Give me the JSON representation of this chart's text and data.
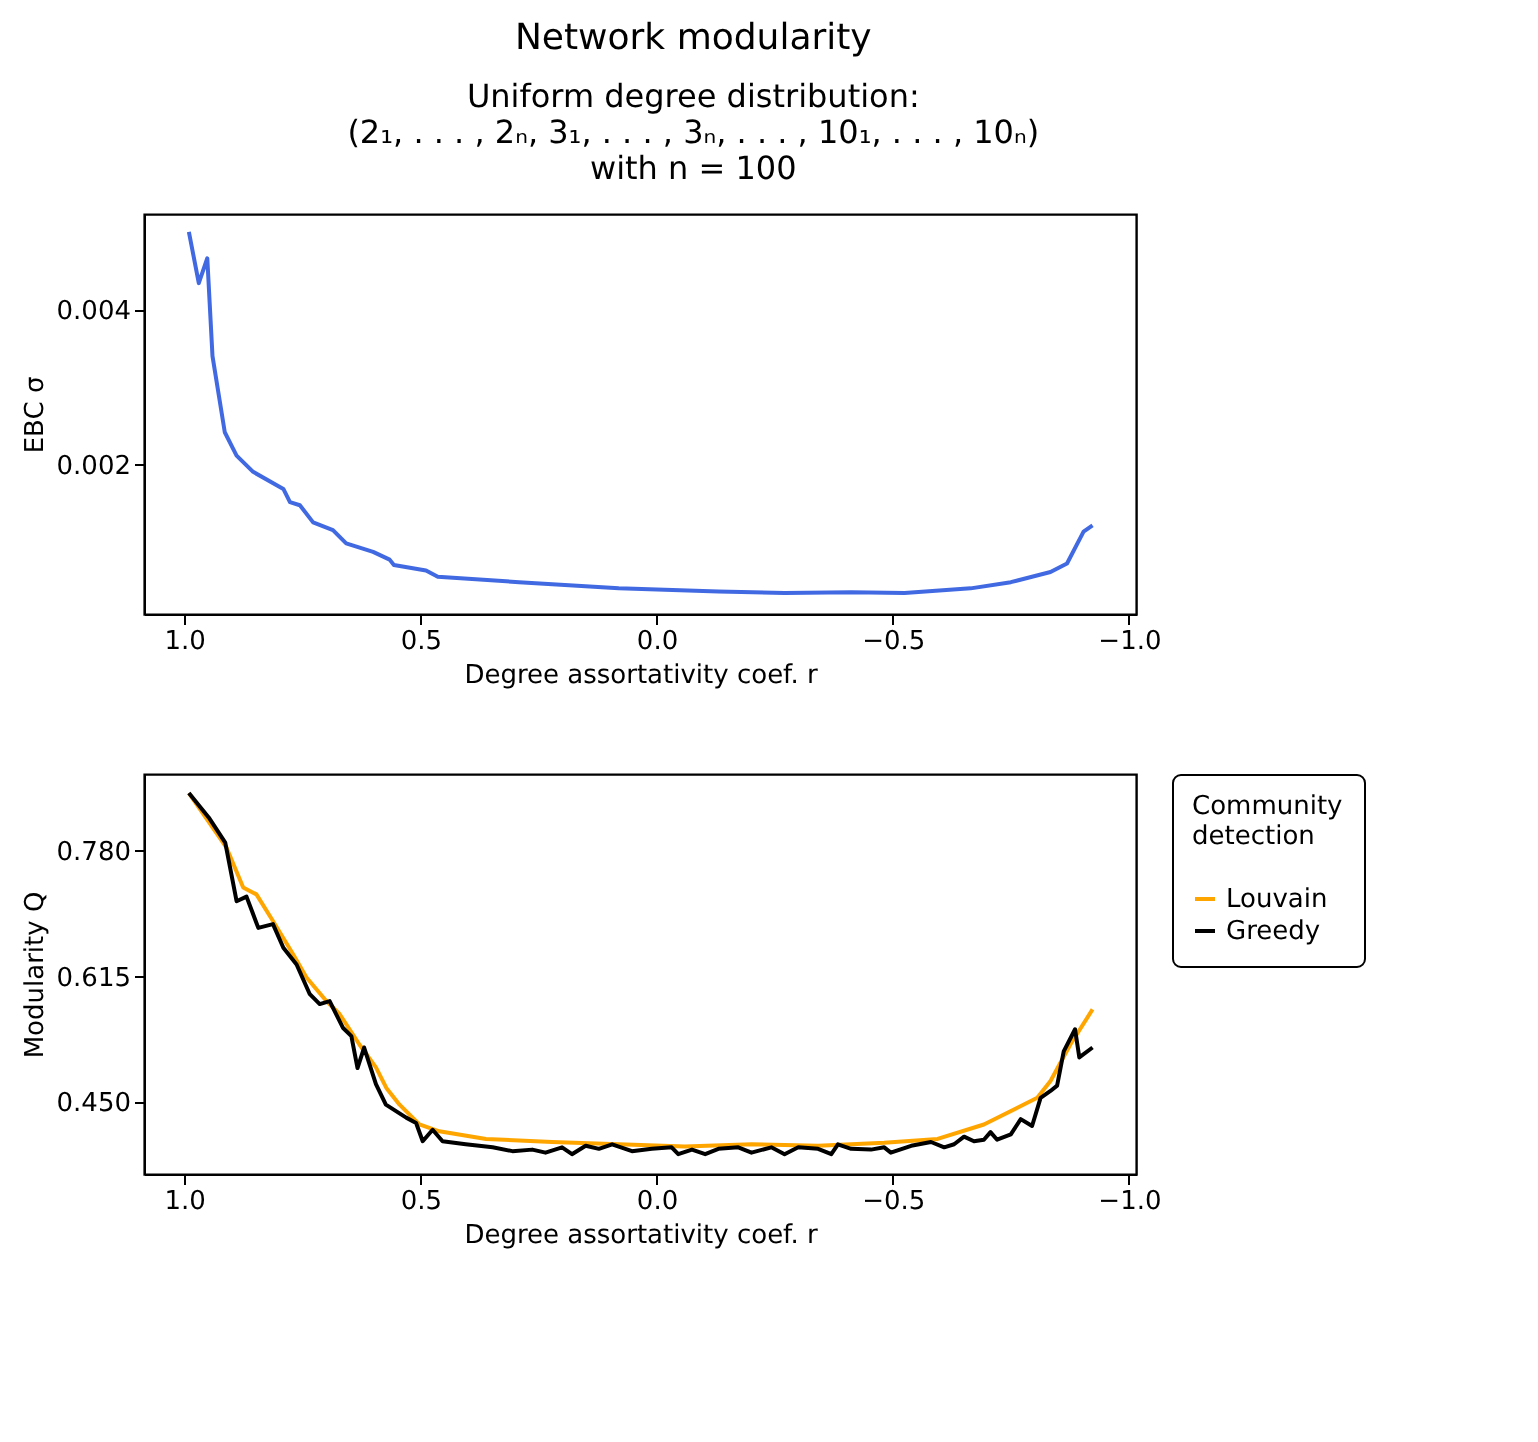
{
  "chart_data": [
    {
      "type": "line",
      "title": "Network modularity",
      "subtitle": "Uniform degree distribution:\n(2₁, . . . , 2ₙ, 3₁, . . . , 3ₙ, . . . , 10₁, . . . , 10ₙ)\nwith n = 100",
      "xlabel": "Degree assortativity coef. r",
      "ylabel": "EBC σ",
      "xlim": [
        1.085,
        -1.015
      ],
      "xticks": [
        {
          "value": 1.0,
          "label": "1.0"
        },
        {
          "value": 0.5,
          "label": "0.5"
        },
        {
          "value": 0.0,
          "label": "0.0"
        },
        {
          "value": -0.5,
          "label": "−0.5"
        },
        {
          "value": -1.0,
          "label": "−1.0"
        }
      ],
      "ylim": [
        8e-05,
        0.00523
      ],
      "yticks": [
        0.002,
        0.004
      ],
      "series": [
        {
          "color": "#4169e1",
          "x": [
            0.99,
            0.969,
            0.951,
            0.94,
            0.914,
            0.889,
            0.854,
            0.79,
            0.776,
            0.755,
            0.727,
            0.685,
            0.657,
            0.6,
            0.565,
            0.556,
            0.488,
            0.463,
            0.291,
            0.08,
            -0.131,
            -0.271,
            -0.412,
            -0.525,
            -0.665,
            -0.75,
            -0.834,
            -0.869,
            -0.904,
            -0.923
          ],
          "values": [
            0.005,
            0.00434,
            0.00466,
            0.0034,
            0.00242,
            0.00212,
            0.00191,
            0.00169,
            0.00152,
            0.00148,
            0.00126,
            0.00116,
            0.00099,
            0.00088,
            0.00078,
            0.00071,
            0.00064,
            0.00056,
            0.00049,
            0.00041,
            0.00037,
            0.00035,
            0.00036,
            0.00035,
            0.00041,
            0.00049,
            0.00062,
            0.00073,
            0.00114,
            0.00122
          ]
        }
      ]
    },
    {
      "type": "line",
      "xlabel": "Degree assortativity coef. r",
      "ylabel": "Modularity Q",
      "legend_title": "Community detection",
      "xlim": [
        1.085,
        -1.015
      ],
      "xticks": [
        {
          "value": 1.0,
          "label": "1.0"
        },
        {
          "value": 0.5,
          "label": "0.5"
        },
        {
          "value": 0.0,
          "label": "0.0"
        },
        {
          "value": -0.5,
          "label": "−0.5"
        },
        {
          "value": -1.0,
          "label": "−1.0"
        }
      ],
      "ylim": [
        0.356,
        0.881
      ],
      "yticks": [
        {
          "value": 0.45,
          "label": "0.450"
        },
        {
          "value": 0.615,
          "label": "0.615"
        },
        {
          "value": 0.78,
          "label": "0.780"
        }
      ],
      "legend": "right",
      "series": [
        {
          "name": "Louvain",
          "color": "#ffa500",
          "x": [
            0.99,
            0.91,
            0.875,
            0.847,
            0.812,
            0.769,
            0.741,
            0.699,
            0.671,
            0.629,
            0.594,
            0.572,
            0.544,
            0.502,
            0.46,
            0.361,
            0.221,
            0.08,
            -0.06,
            -0.201,
            -0.342,
            -0.482,
            -0.595,
            -0.693,
            -0.764,
            -0.806,
            -0.834,
            -0.876,
            -0.923
          ],
          "values": [
            0.856,
            0.784,
            0.732,
            0.723,
            0.688,
            0.644,
            0.614,
            0.583,
            0.566,
            0.526,
            0.496,
            0.469,
            0.447,
            0.421,
            0.412,
            0.402,
            0.398,
            0.395,
            0.392,
            0.395,
            0.393,
            0.397,
            0.402,
            0.421,
            0.443,
            0.456,
            0.478,
            0.526,
            0.572
          ]
        },
        {
          "name": "Greedy",
          "color": "#000000",
          "x": [
            0.99,
            0.948,
            0.913,
            0.889,
            0.868,
            0.843,
            0.812,
            0.79,
            0.762,
            0.734,
            0.713,
            0.692,
            0.664,
            0.646,
            0.633,
            0.619,
            0.594,
            0.573,
            0.53,
            0.509,
            0.495,
            0.474,
            0.453,
            0.404,
            0.347,
            0.305,
            0.263,
            0.235,
            0.2,
            0.179,
            0.15,
            0.122,
            0.094,
            0.052,
            0.01,
            -0.032,
            -0.046,
            -0.075,
            -0.103,
            -0.131,
            -0.173,
            -0.201,
            -0.243,
            -0.271,
            -0.3,
            -0.342,
            -0.37,
            -0.384,
            -0.412,
            -0.454,
            -0.482,
            -0.496,
            -0.539,
            -0.581,
            -0.609,
            -0.63,
            -0.651,
            -0.672,
            -0.693,
            -0.707,
            -0.721,
            -0.75,
            -0.771,
            -0.795,
            -0.813,
            -0.834,
            -0.848,
            -0.862,
            -0.886,
            -0.895,
            -0.923
          ],
          "values": [
            0.856,
            0.824,
            0.791,
            0.714,
            0.72,
            0.679,
            0.684,
            0.653,
            0.631,
            0.592,
            0.579,
            0.583,
            0.548,
            0.537,
            0.495,
            0.522,
            0.474,
            0.447,
            0.43,
            0.423,
            0.399,
            0.414,
            0.399,
            0.395,
            0.391,
            0.386,
            0.388,
            0.384,
            0.391,
            0.382,
            0.393,
            0.389,
            0.395,
            0.386,
            0.389,
            0.391,
            0.382,
            0.388,
            0.382,
            0.389,
            0.391,
            0.384,
            0.391,
            0.382,
            0.391,
            0.389,
            0.382,
            0.395,
            0.389,
            0.388,
            0.391,
            0.384,
            0.393,
            0.398,
            0.391,
            0.395,
            0.405,
            0.399,
            0.401,
            0.411,
            0.401,
            0.408,
            0.428,
            0.419,
            0.456,
            0.465,
            0.472,
            0.517,
            0.546,
            0.509,
            0.522
          ]
        }
      ]
    }
  ]
}
